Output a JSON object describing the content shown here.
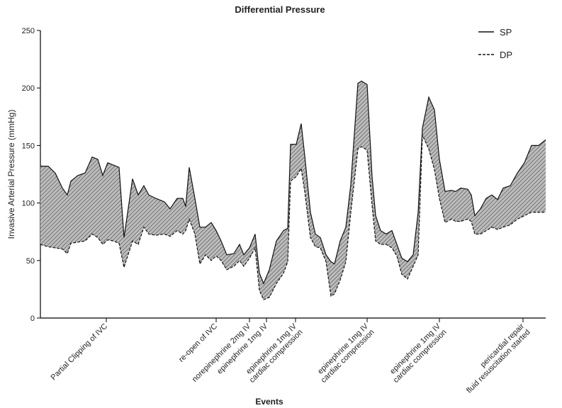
{
  "chart_data": {
    "type": "line",
    "title": "Differential Pressure",
    "x_label": "Events",
    "y_label": "Invasive Arterial Pressure (mmHg)",
    "x": [
      0,
      11,
      21,
      31,
      38,
      43,
      53,
      63,
      73,
      81,
      88,
      95,
      103,
      111,
      118,
      130,
      138,
      146,
      153,
      163,
      175,
      183,
      193,
      201,
      205,
      210,
      218,
      225,
      233,
      241,
      248,
      255,
      263,
      273,
      281,
      287,
      295,
      303,
      309,
      315,
      323,
      333,
      343,
      349,
      353,
      361,
      368,
      373,
      381,
      388,
      395,
      403,
      410,
      415,
      423,
      431,
      438,
      448,
      453,
      461,
      468,
      473,
      480,
      488,
      496,
      503,
      510,
      518,
      526,
      533,
      539,
      548,
      556,
      563,
      571,
      580,
      586,
      593,
      603,
      608,
      613,
      621,
      629,
      637,
      645,
      653,
      663,
      673,
      683,
      693,
      703,
      713
    ],
    "series": [
      {
        "name": "SP",
        "color": "#111111",
        "dash": false,
        "values": [
          132,
          132,
          126,
          113,
          107,
          119,
          124,
          126,
          140,
          138,
          124,
          135,
          133,
          131,
          70,
          121,
          107,
          115,
          107,
          104,
          101,
          95,
          104,
          104,
          97,
          131,
          104,
          79,
          79,
          83,
          76,
          67,
          55,
          56,
          64,
          55,
          61,
          73,
          39,
          30,
          42,
          67,
          76,
          78,
          151,
          151,
          169,
          141,
          92,
          73,
          70,
          55,
          49,
          47,
          67,
          79,
          116,
          204,
          206,
          203,
          123,
          89,
          76,
          73,
          76,
          64,
          52,
          49,
          55,
          92,
          165,
          192,
          181,
          138,
          110,
          111,
          110,
          113,
          112,
          107,
          89,
          95,
          104,
          107,
          103,
          113,
          115,
          126,
          135,
          150,
          150,
          155
        ]
      },
      {
        "name": "DP",
        "color": "#111111",
        "dash": true,
        "values": [
          64,
          62,
          61,
          60,
          56,
          65,
          66,
          67,
          73,
          70,
          64,
          68,
          67,
          65,
          44,
          67,
          64,
          79,
          73,
          72,
          73,
          71,
          76,
          73,
          76,
          86,
          73,
          47,
          55,
          50,
          54,
          50,
          42,
          45,
          50,
          45,
          52,
          61,
          24,
          16,
          18,
          30,
          39,
          49,
          119,
          123,
          130,
          110,
          70,
          62,
          61,
          49,
          19,
          21,
          33,
          49,
          92,
          147,
          149,
          146,
          98,
          67,
          64,
          64,
          61,
          54,
          38,
          34,
          45,
          55,
          159,
          147,
          129,
          104,
          83,
          86,
          84,
          84,
          86,
          84,
          73,
          73,
          76,
          79,
          77,
          79,
          81,
          86,
          89,
          92,
          92,
          92
        ]
      }
    ],
    "fill_between": true,
    "xlim": [
      0,
      713
    ],
    "xticks": [
      {
        "value": 93,
        "label": [
          "Partial Clipping of IVC"
        ]
      },
      {
        "value": 248,
        "label": [
          "re-open of IVC"
        ]
      },
      {
        "value": 295,
        "label": [
          "norepinephrine 2mg IV"
        ]
      },
      {
        "value": 319,
        "label": [
          "epinephrine 1mg IV"
        ]
      },
      {
        "value": 360,
        "label": [
          "epinephrine 1mg IV",
          "cardiac compression"
        ]
      },
      {
        "value": 461,
        "label": [
          "epinephrine 1mg IV",
          "cardiac compression"
        ]
      },
      {
        "value": 563,
        "label": [
          "epinephrine 1mg IV",
          "cardiac compression"
        ]
      },
      {
        "value": 681,
        "label": [
          "pericardial repair",
          "fluid resuscitation started"
        ]
      }
    ],
    "ylim": [
      0,
      250
    ],
    "yticks": [
      0,
      50,
      100,
      150,
      200,
      250
    ],
    "legend": "top-right"
  }
}
